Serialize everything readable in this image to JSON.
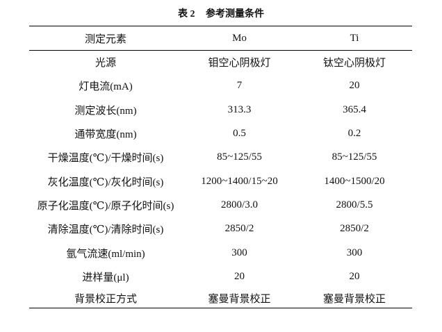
{
  "caption": {
    "label": "表 2",
    "title": "参考测量条件"
  },
  "table": {
    "headers": [
      "测定元素",
      "Mo",
      "Ti"
    ],
    "rows": [
      [
        "光源",
        "钼空心阴极灯",
        "钛空心阴极灯"
      ],
      [
        "灯电流(mA)",
        "7",
        "20"
      ],
      [
        "测定波长(nm)",
        "313.3",
        "365.4"
      ],
      [
        "通带宽度(nm)",
        "0.5",
        "0.2"
      ],
      [
        "干燥温度(℃)/干燥时间(s)",
        "85~125/55",
        "85~125/55"
      ],
      [
        "灰化温度(℃)/灰化时间(s)",
        "1200~1400/15~20",
        "1400~1500/20"
      ],
      [
        "原子化温度(℃)/原子化时间(s)",
        "2800/3.0",
        "2800/5.5"
      ],
      [
        "清除温度(℃)/清除时间(s)",
        "2850/2",
        "2850/2"
      ],
      [
        "氩气流速(ml/min)",
        "300",
        "300"
      ],
      [
        "进样量(μl)",
        "20",
        "20"
      ],
      [
        "背景校正方式",
        "塞曼背景校正",
        "塞曼背景校正"
      ]
    ]
  }
}
